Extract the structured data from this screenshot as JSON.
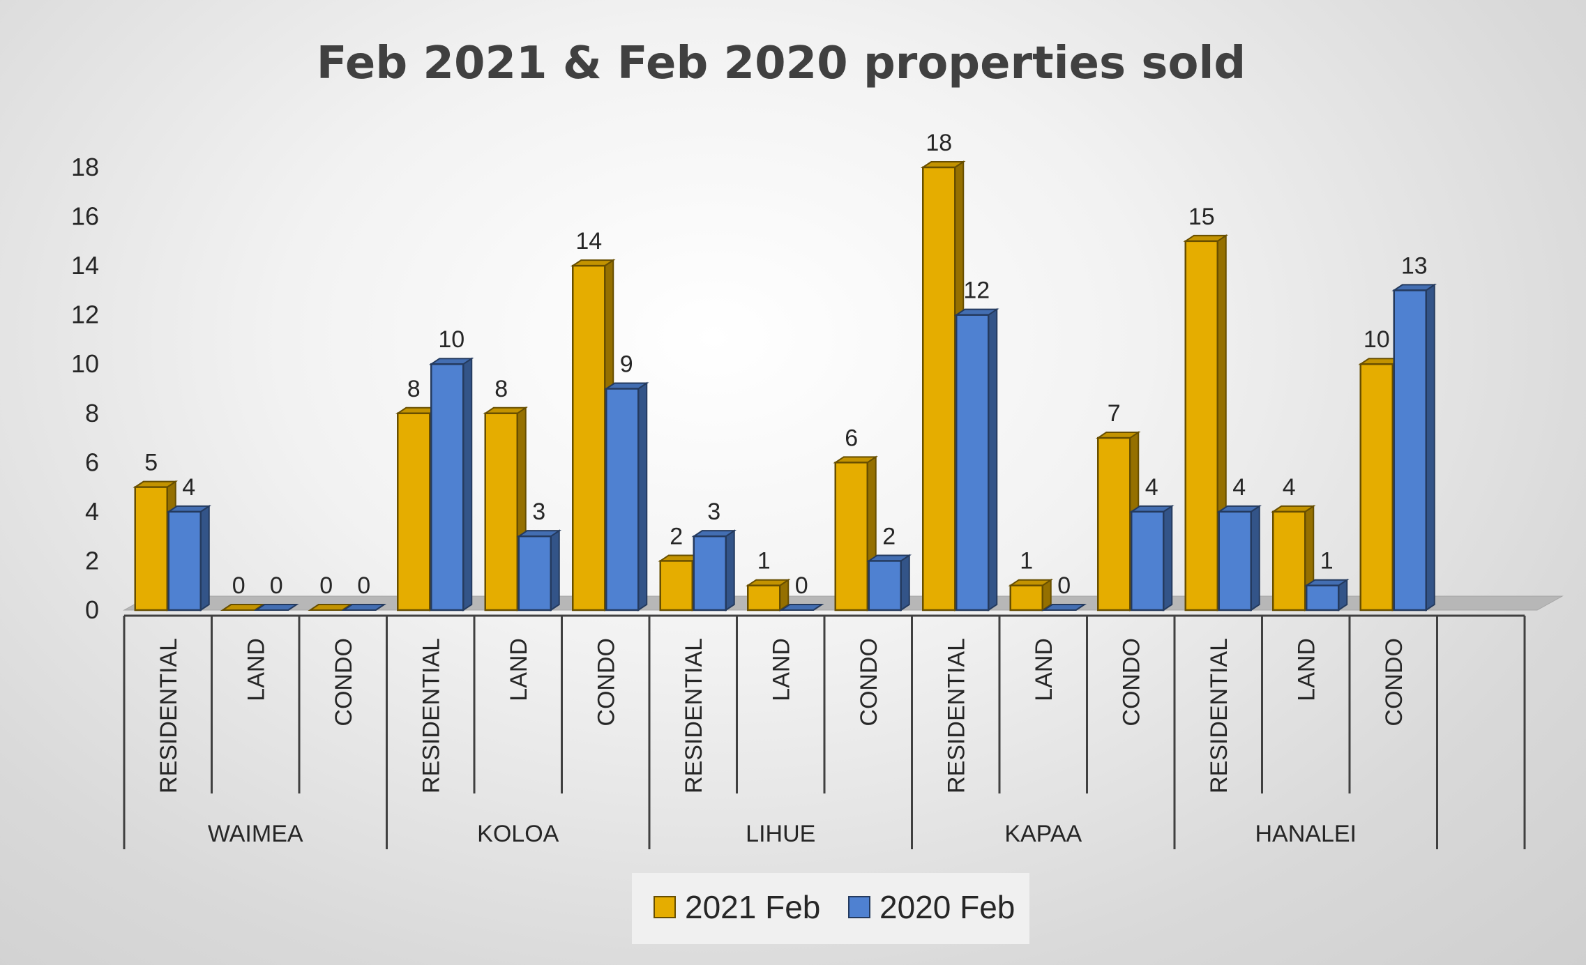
{
  "chart_data": {
    "type": "bar",
    "title": "Feb 2021 & Feb 2020  properties sold",
    "ylim": [
      0,
      18
    ],
    "yticks": [
      0,
      2,
      4,
      6,
      8,
      10,
      12,
      14,
      16,
      18
    ],
    "groups": [
      "WAIMEA",
      "KOLOA",
      "LIHUE",
      "KAPAA",
      "HANALEI"
    ],
    "categories": [
      "RESIDENTIAL",
      "LAND",
      "CONDO",
      "RESIDENTIAL",
      "LAND",
      "CONDO",
      "RESIDENTIAL",
      "LAND",
      "CONDO",
      "RESIDENTIAL",
      "LAND",
      "CONDO",
      "RESIDENTIAL",
      "LAND",
      "CONDO"
    ],
    "series": [
      {
        "name": "2021 Feb",
        "color": "#e5ad00",
        "values": [
          5,
          0,
          0,
          8,
          8,
          14,
          2,
          1,
          6,
          18,
          1,
          7,
          15,
          4,
          10
        ]
      },
      {
        "name": "2020 Feb",
        "color": "#4f81d1",
        "values": [
          4,
          0,
          0,
          10,
          3,
          9,
          3,
          0,
          2,
          12,
          0,
          4,
          4,
          1,
          13
        ]
      }
    ],
    "legend": "bottom",
    "grid": false
  }
}
